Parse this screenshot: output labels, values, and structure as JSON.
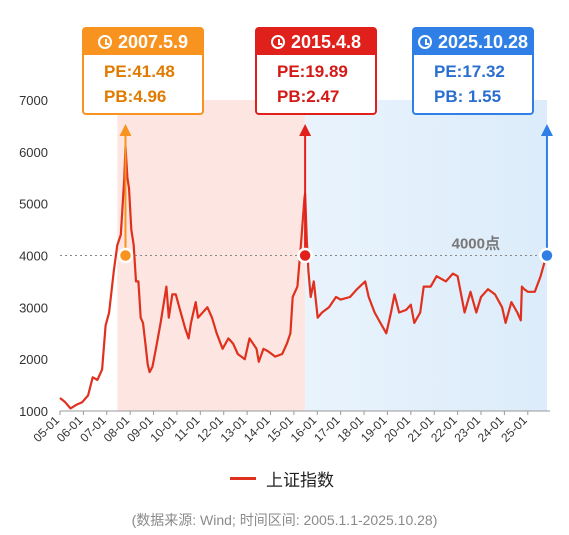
{
  "chart_data": {
    "type": "line",
    "ylim": [
      1000,
      7000
    ],
    "y_ticks": [
      "7000",
      "6000",
      "5000",
      "4000",
      "3000",
      "2000",
      "1000"
    ],
    "x_ticks": [
      "05-01",
      "06-01",
      "07-01",
      "08-01",
      "09-01",
      "10-01",
      "11-01",
      "12-01",
      "13-01",
      "14-01",
      "15-01",
      "16-01",
      "17-01",
      "18-01",
      "19-01",
      "20-01",
      "21-01",
      "22-01",
      "23-01",
      "24-01",
      "25-01"
    ],
    "series": [
      {
        "name": "上证指数",
        "color": "#e0301e",
        "points": [
          [
            2005.0,
            1250
          ],
          [
            2005.2,
            1180
          ],
          [
            2005.45,
            1050
          ],
          [
            2005.7,
            1120
          ],
          [
            2005.95,
            1170
          ],
          [
            2006.2,
            1300
          ],
          [
            2006.4,
            1650
          ],
          [
            2006.6,
            1600
          ],
          [
            2006.8,
            1800
          ],
          [
            2006.95,
            2650
          ],
          [
            2007.1,
            2900
          ],
          [
            2007.3,
            3700
          ],
          [
            2007.45,
            4200
          ],
          [
            2007.6,
            4400
          ],
          [
            2007.75,
            5500
          ],
          [
            2007.8,
            6100
          ],
          [
            2007.88,
            5500
          ],
          [
            2007.95,
            5300
          ],
          [
            2008.05,
            4500
          ],
          [
            2008.15,
            4200
          ],
          [
            2008.25,
            3500
          ],
          [
            2008.35,
            3500
          ],
          [
            2008.45,
            2800
          ],
          [
            2008.55,
            2700
          ],
          [
            2008.65,
            2300
          ],
          [
            2008.75,
            1900
          ],
          [
            2008.83,
            1750
          ],
          [
            2008.95,
            1850
          ],
          [
            2009.1,
            2200
          ],
          [
            2009.3,
            2700
          ],
          [
            2009.55,
            3400
          ],
          [
            2009.65,
            2800
          ],
          [
            2009.8,
            3250
          ],
          [
            2009.95,
            3250
          ],
          [
            2010.1,
            3000
          ],
          [
            2010.35,
            2600
          ],
          [
            2010.5,
            2400
          ],
          [
            2010.6,
            2700
          ],
          [
            2010.8,
            3100
          ],
          [
            2010.9,
            2800
          ],
          [
            2011.1,
            2900
          ],
          [
            2011.3,
            3000
          ],
          [
            2011.5,
            2800
          ],
          [
            2011.7,
            2500
          ],
          [
            2011.95,
            2200
          ],
          [
            2012.2,
            2400
          ],
          [
            2012.4,
            2300
          ],
          [
            2012.6,
            2100
          ],
          [
            2012.9,
            2000
          ],
          [
            2013.1,
            2400
          ],
          [
            2013.4,
            2200
          ],
          [
            2013.5,
            1950
          ],
          [
            2013.7,
            2200
          ],
          [
            2013.9,
            2150
          ],
          [
            2014.2,
            2050
          ],
          [
            2014.5,
            2100
          ],
          [
            2014.7,
            2300
          ],
          [
            2014.85,
            2500
          ],
          [
            2014.95,
            3200
          ],
          [
            2015.15,
            3400
          ],
          [
            2015.3,
            4200
          ],
          [
            2015.45,
            5100
          ],
          [
            2015.48,
            5200
          ],
          [
            2015.55,
            4300
          ],
          [
            2015.62,
            3700
          ],
          [
            2015.72,
            3200
          ],
          [
            2015.85,
            3500
          ],
          [
            2016.02,
            2800
          ],
          [
            2016.2,
            2900
          ],
          [
            2016.5,
            3000
          ],
          [
            2016.8,
            3200
          ],
          [
            2017.0,
            3150
          ],
          [
            2017.4,
            3200
          ],
          [
            2017.7,
            3350
          ],
          [
            2018.05,
            3500
          ],
          [
            2018.2,
            3200
          ],
          [
            2018.45,
            2900
          ],
          [
            2018.7,
            2700
          ],
          [
            2018.95,
            2500
          ],
          [
            2019.15,
            2900
          ],
          [
            2019.3,
            3250
          ],
          [
            2019.5,
            2900
          ],
          [
            2019.8,
            2950
          ],
          [
            2020.0,
            3050
          ],
          [
            2020.15,
            2700
          ],
          [
            2020.4,
            2900
          ],
          [
            2020.55,
            3400
          ],
          [
            2020.85,
            3400
          ],
          [
            2021.1,
            3600
          ],
          [
            2021.5,
            3500
          ],
          [
            2021.8,
            3650
          ],
          [
            2022.0,
            3600
          ],
          [
            2022.3,
            2900
          ],
          [
            2022.55,
            3300
          ],
          [
            2022.8,
            2900
          ],
          [
            2023.0,
            3200
          ],
          [
            2023.3,
            3350
          ],
          [
            2023.6,
            3250
          ],
          [
            2023.9,
            3000
          ],
          [
            2024.05,
            2700
          ],
          [
            2024.3,
            3100
          ],
          [
            2024.55,
            2900
          ],
          [
            2024.7,
            2750
          ],
          [
            2024.75,
            3400
          ],
          [
            2024.85,
            3350
          ],
          [
            2025.0,
            3300
          ],
          [
            2025.3,
            3300
          ],
          [
            2025.55,
            3600
          ],
          [
            2025.7,
            3850
          ],
          [
            2025.82,
            4000
          ]
        ]
      }
    ],
    "threshold": {
      "value": 4000,
      "label": "4000点"
    },
    "events": [
      {
        "x": 2007.8,
        "date": "2007.5.9",
        "pe": "PE:41.48",
        "pb": "PB:4.96",
        "color": "#f7931e",
        "text_color": "#e07b00"
      },
      {
        "x": 2015.48,
        "date": "2015.4.8",
        "pe": "PE:19.89",
        "pb": "PB:2.47",
        "color": "#e0201b",
        "text_color": "#d41a16"
      },
      {
        "x": 2025.82,
        "date": "2025.10.28",
        "pe": "PE:17.32",
        "pb": "PB: 1.55",
        "color": "#2f7fe6",
        "text_color": "#2a6fd0"
      }
    ],
    "shaded_regions": [
      {
        "from": 2007.45,
        "to": 2015.48,
        "color": "#fde6e2"
      },
      {
        "from": 2015.48,
        "to": 2025.82,
        "color": "#e3f0fb"
      }
    ]
  },
  "legend": {
    "label": "上证指数"
  },
  "source": "(数据来源: Wind; 时间区间: 2005.1.1-2025.10.28)"
}
